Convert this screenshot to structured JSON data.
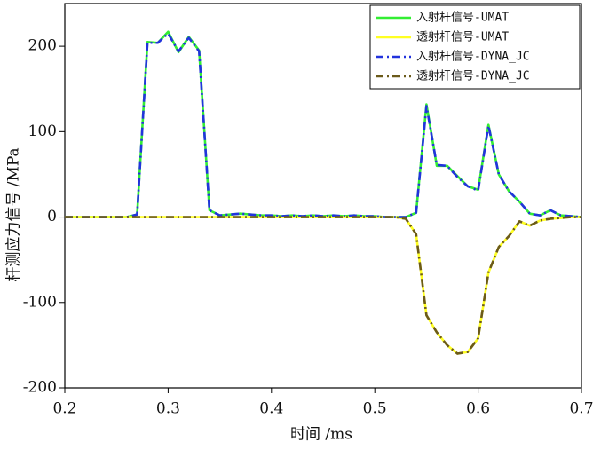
{
  "chart_data": {
    "type": "line",
    "xlabel": "时间 /ms",
    "ylabel": "杆测应力信号 /MPa",
    "x": [
      0.2,
      0.21,
      0.22,
      0.23,
      0.24,
      0.25,
      0.26,
      0.27,
      0.28,
      0.29,
      0.3,
      0.31,
      0.32,
      0.33,
      0.34,
      0.35,
      0.36,
      0.37,
      0.38,
      0.39,
      0.4,
      0.41,
      0.42,
      0.43,
      0.44,
      0.45,
      0.46,
      0.47,
      0.48,
      0.49,
      0.5,
      0.51,
      0.52,
      0.53,
      0.54,
      0.55,
      0.56,
      0.57,
      0.58,
      0.59,
      0.6,
      0.61,
      0.62,
      0.63,
      0.64,
      0.65,
      0.66,
      0.67,
      0.68,
      0.69,
      0.7
    ],
    "series": [
      {
        "name": "入射杆信号-UMAT",
        "color": "#33ee33",
        "dash": "solid",
        "values": [
          0,
          0,
          0,
          0,
          0,
          0,
          0,
          3,
          205,
          204,
          217,
          193,
          211,
          195,
          8,
          2,
          3,
          4,
          3,
          2,
          2,
          1,
          2,
          1,
          2,
          1,
          2,
          1,
          2,
          1,
          1,
          0,
          0,
          0,
          5,
          132,
          60,
          60,
          48,
          36,
          32,
          108,
          50,
          30,
          18,
          4,
          2,
          8,
          2,
          1,
          0
        ]
      },
      {
        "name": "透射杆信号-UMAT",
        "color": "#ffff22",
        "dash": "solid",
        "values": [
          0,
          0,
          0,
          0,
          0,
          0,
          0,
          0,
          0,
          0,
          0,
          0,
          0,
          0,
          0,
          0,
          0,
          0,
          0,
          0,
          0,
          0,
          0,
          0,
          0,
          0,
          0,
          0,
          0,
          0,
          0,
          0,
          0,
          -2,
          -20,
          -115,
          -135,
          -150,
          -160,
          -158,
          -142,
          -65,
          -35,
          -22,
          -5,
          -10,
          -4,
          -2,
          -1,
          0,
          0
        ]
      },
      {
        "name": "入射杆信号-DYNA_JC",
        "color": "#2233dd",
        "dash": "dashdot",
        "values": [
          0,
          0,
          0,
          0,
          0,
          0,
          0,
          3,
          204,
          204,
          215,
          194,
          210,
          194,
          8,
          2,
          3,
          4,
          3,
          2,
          2,
          1,
          2,
          1,
          2,
          1,
          2,
          1,
          2,
          1,
          1,
          0,
          0,
          0,
          5,
          130,
          61,
          60,
          47,
          36,
          31,
          107,
          50,
          30,
          18,
          4,
          2,
          8,
          2,
          1,
          0
        ]
      },
      {
        "name": "透射杆信号-DYNA_JC",
        "color": "#6b5a1a",
        "dash": "dashdot",
        "values": [
          0,
          0,
          0,
          0,
          0,
          0,
          0,
          0,
          0,
          0,
          0,
          0,
          0,
          0,
          0,
          0,
          0,
          0,
          0,
          0,
          0,
          0,
          0,
          0,
          0,
          0,
          0,
          0,
          0,
          0,
          0,
          0,
          0,
          -2,
          -20,
          -115,
          -135,
          -150,
          -160,
          -158,
          -142,
          -65,
          -35,
          -22,
          -5,
          -10,
          -4,
          -2,
          -1,
          0,
          0
        ]
      }
    ],
    "xlim": [
      0.2,
      0.7
    ],
    "xticks": [
      0.2,
      0.3,
      0.4,
      0.5,
      0.6,
      0.7
    ],
    "ylim": [
      -200,
      250
    ],
    "yticks": [
      -200,
      -100,
      0,
      100,
      200
    ],
    "legend": "upper right",
    "grid": false
  }
}
